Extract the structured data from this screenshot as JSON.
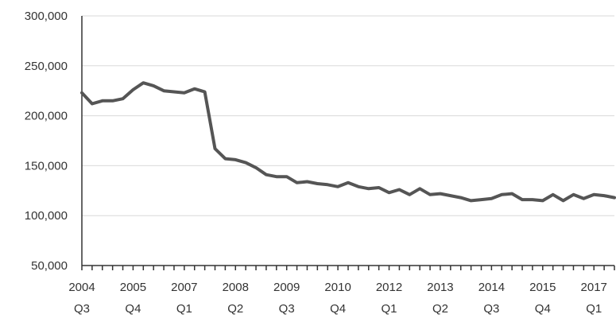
{
  "chart_data": {
    "type": "line",
    "title": "",
    "xlabel": "",
    "ylabel": "",
    "ylim": [
      50000,
      300000
    ],
    "y_ticks": [
      "50,000",
      "100,000",
      "150,000",
      "200,000",
      "250,000",
      "300,000"
    ],
    "y_tick_values": [
      50000,
      100000,
      150000,
      200000,
      250000,
      300000
    ],
    "x_tick_labels": [
      {
        "year": "2004",
        "quarter": "Q3",
        "index": 0
      },
      {
        "year": "2005",
        "quarter": "Q4",
        "index": 5
      },
      {
        "year": "2007",
        "quarter": "Q1",
        "index": 10
      },
      {
        "year": "2008",
        "quarter": "Q2",
        "index": 15
      },
      {
        "year": "2009",
        "quarter": "Q3",
        "index": 20
      },
      {
        "year": "2010",
        "quarter": "Q4",
        "index": 25
      },
      {
        "year": "2012",
        "quarter": "Q1",
        "index": 30
      },
      {
        "year": "2013",
        "quarter": "Q2",
        "index": 35
      },
      {
        "year": "2014",
        "quarter": "Q3",
        "index": 40
      },
      {
        "year": "2015",
        "quarter": "Q4",
        "index": 45
      },
      {
        "year": "2017",
        "quarter": "Q1",
        "index": 50
      }
    ],
    "grid": true,
    "line_color": "#555555",
    "series": [
      {
        "values": [
          223000,
          212000,
          215000,
          215000,
          217000,
          226000,
          233000,
          230000,
          225000,
          224000,
          223000,
          227000,
          224000,
          167000,
          157000,
          156000,
          153000,
          148000,
          141000,
          139000,
          139000,
          133000,
          134000,
          132000,
          131000,
          129000,
          133000,
          129000,
          127000,
          128000,
          123000,
          126000,
          121000,
          127000,
          121000,
          122000,
          120000,
          118000,
          115000,
          116000,
          117000,
          121000,
          122000,
          116000,
          116000,
          115000,
          121000,
          115000,
          121000,
          117000,
          121000,
          120000,
          118000
        ]
      }
    ]
  }
}
